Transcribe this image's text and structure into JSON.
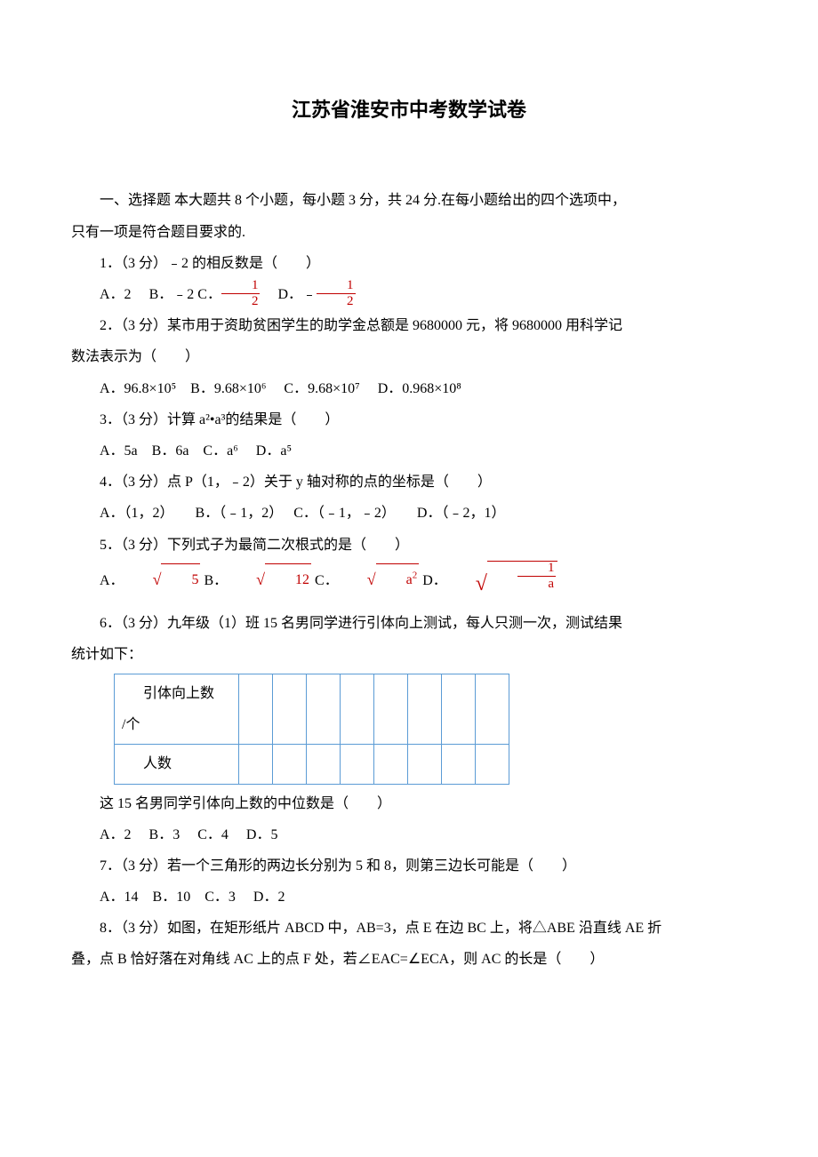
{
  "title": "江苏省淮安市中考数学试卷",
  "section1": {
    "intro_l1": "一、选择题 本大题共 8 个小题，每小题 3 分，共 24 分.在每小题给出的四个选项中，",
    "intro_l2": "只有一项是符合题目要求的."
  },
  "q1": {
    "text": "1．（3 分）﹣2 的相反数是（　　）",
    "optA": "A．2",
    "optB": "B．﹣2",
    "optC_pre": "C．",
    "optD_pre": "D．﹣",
    "frac_num": "1",
    "frac_den": "2"
  },
  "q2": {
    "l1": "2．（3 分）某市用于资助贫困学生的助学金总额是 9680000 元，将 9680000 用科学记",
    "l2": "数法表示为（　　）",
    "opts": "A．96.8×10⁵　B．9.68×10⁶　 C．9.68×10⁷　 D．0.968×10⁸"
  },
  "q3": {
    "text": "3．（3 分）计算 a²•a³的结果是（　　）",
    "opts": "A．5a　B．6a　C．a⁶　 D．a⁵"
  },
  "q4": {
    "text": "4．（3 分）点 P（1，﹣2）关于 y 轴对称的点的坐标是（　　）",
    "opts": "A．（1，2）　　B．（﹣1，2）　 C．（﹣1，﹣2）　　D．（﹣2，1）"
  },
  "q5": {
    "text": "5．（3 分）下列式子为最简二次根式的是（　　）",
    "optA_pre": "A．",
    "optA_body": "5",
    "optB_pre": " B．",
    "optB_body": "12",
    "optC_pre": "C．",
    "optC_body": "a",
    "optC_sup": "2",
    "optD_pre": "D．",
    "optD_num": "1",
    "optD_den": "a"
  },
  "q6": {
    "l1": "6．（3 分）九年级（1）班 15 名男同学进行引体向上测试，每人只测一次，测试结果",
    "l2": "统计如下：",
    "table": {
      "row1_label_l1": "引体向上数",
      "row1_label_l2": "/个",
      "row2_label": "人数",
      "cols": 8,
      "border_color": "#5b9bd5"
    },
    "after": "这 15 名男同学引体向上数的中位数是（　　）",
    "opts": "A．2　 B．3　 C．4　 D．5"
  },
  "q7": {
    "text": "7．（3 分）若一个三角形的两边长分别为 5 和 8，则第三边长可能是（　　）",
    "opts": "A．14　B．10　C．3　 D．2"
  },
  "q8": {
    "l1": "8．（3 分）如图，在矩形纸片 ABCD 中，AB=3，点 E 在边 BC 上，将△ABE 沿直线 AE 折",
    "l2": "叠，点 B 恰好落在对角线 AC 上的点 F 处，若∠EAC=∠ECA，则 AC 的长是（　　）"
  },
  "colors": {
    "text": "#000000",
    "math": "#c00000",
    "table_border": "#5b9bd5",
    "background": "#ffffff"
  },
  "typography": {
    "body_font": "SimSun",
    "title_font": "SimHei",
    "body_size_pt": 12,
    "title_size_pt": 16,
    "line_height": 2.2
  }
}
